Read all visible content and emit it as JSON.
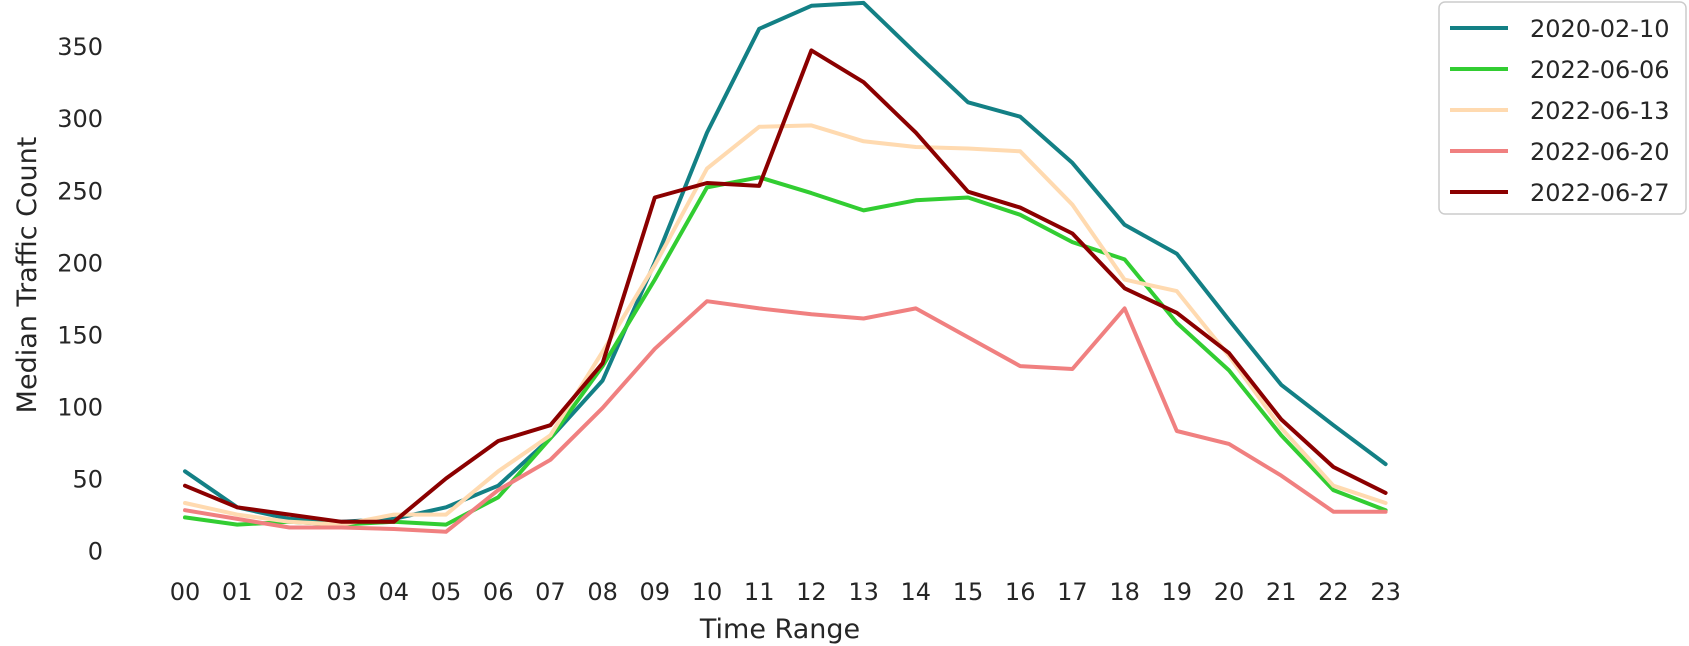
{
  "chart_data": {
    "type": "line",
    "title": "",
    "xlabel": "Time Range",
    "ylabel": "Median Traffic Count",
    "categories": [
      "00",
      "01",
      "02",
      "03",
      "04",
      "05",
      "06",
      "07",
      "08",
      "09",
      "10",
      "11",
      "12",
      "13",
      "14",
      "15",
      "16",
      "17",
      "18",
      "19",
      "20",
      "21",
      "22",
      "23"
    ],
    "ylim": [
      -10,
      382
    ],
    "yticks": [
      0,
      50,
      100,
      150,
      200,
      250,
      300,
      350
    ],
    "grid": false,
    "legend_position": "outside-top-right",
    "series": [
      {
        "name": "2020-02-10",
        "color": "#138085",
        "values": [
          55,
          30,
          22,
          20,
          22,
          30,
          45,
          78,
          118,
          200,
          290,
          362,
          378,
          380,
          345,
          311,
          301,
          269,
          226,
          206,
          160,
          115,
          87,
          60
        ]
      },
      {
        "name": "2022-06-06",
        "color": "#32cd32",
        "values": [
          23,
          18,
          20,
          18,
          20,
          18,
          37,
          78,
          128,
          188,
          252,
          259,
          248,
          236,
          243,
          245,
          233,
          214,
          202,
          158,
          125,
          80,
          42,
          28
        ]
      },
      {
        "name": "2022-06-13",
        "color": "#ffdab0",
        "values": [
          33,
          25,
          20,
          18,
          25,
          25,
          55,
          80,
          138,
          198,
          265,
          294,
          295,
          284,
          280,
          279,
          277,
          240,
          188,
          180,
          135,
          85,
          45,
          33
        ]
      },
      {
        "name": "2022-06-20",
        "color": "#f08080",
        "values": [
          28,
          22,
          16,
          16,
          15,
          13,
          42,
          63,
          99,
          140,
          173,
          168,
          164,
          161,
          168,
          148,
          128,
          126,
          168,
          83,
          74,
          52,
          27,
          27
        ]
      },
      {
        "name": "2022-06-27",
        "color": "#8b0000",
        "values": [
          45,
          30,
          25,
          20,
          20,
          50,
          76,
          87,
          130,
          245,
          255,
          253,
          347,
          325,
          290,
          249,
          238,
          220,
          182,
          165,
          137,
          91,
          58,
          40
        ]
      }
    ]
  }
}
